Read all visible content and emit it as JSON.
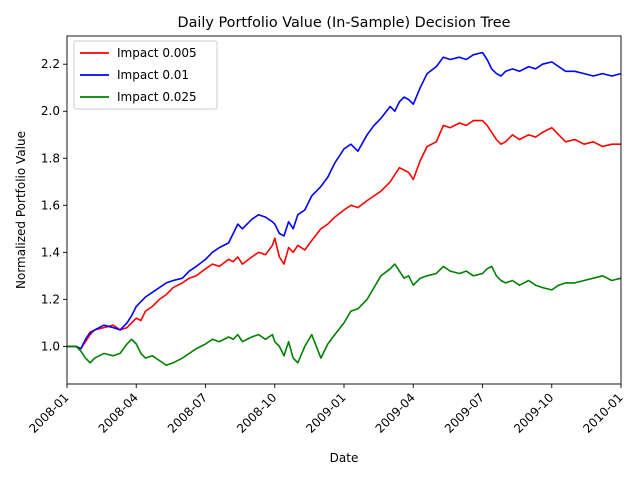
{
  "chart_data": {
    "type": "line",
    "title": "Daily Portfolio Value (In-Sample) Decision Tree",
    "xlabel": "Date",
    "ylabel": "Normalized Portfolio Value",
    "xlim": [
      0,
      24
    ],
    "ylim": [
      0.84,
      2.32
    ],
    "x_ticks": [
      {
        "v": 0,
        "label": "2008-01"
      },
      {
        "v": 3,
        "label": "2008-04"
      },
      {
        "v": 6,
        "label": "2008-07"
      },
      {
        "v": 9,
        "label": "2008-10"
      },
      {
        "v": 12,
        "label": "2009-01"
      },
      {
        "v": 15,
        "label": "2009-04"
      },
      {
        "v": 18,
        "label": "2009-07"
      },
      {
        "v": 21,
        "label": "2009-10"
      },
      {
        "v": 24,
        "label": "2010-01"
      }
    ],
    "y_ticks": [
      {
        "v": 1.0,
        "label": "1.0"
      },
      {
        "v": 1.2,
        "label": "1.2"
      },
      {
        "v": 1.4,
        "label": "1.4"
      },
      {
        "v": 1.6,
        "label": "1.6"
      },
      {
        "v": 1.8,
        "label": "1.8"
      },
      {
        "v": 2.0,
        "label": "2.0"
      },
      {
        "v": 2.2,
        "label": "2.2"
      }
    ],
    "legend_position": "upper-left",
    "series": [
      {
        "name": "Impact 0.005",
        "color": "#ff0000",
        "x": [
          0,
          0.4,
          0.6,
          0.8,
          1.0,
          1.2,
          1.6,
          2.0,
          2.3,
          2.6,
          2.8,
          3.0,
          3.2,
          3.4,
          3.7,
          4.0,
          4.3,
          4.6,
          5.0,
          5.3,
          5.6,
          6.0,
          6.3,
          6.6,
          7.0,
          7.2,
          7.4,
          7.6,
          8.0,
          8.3,
          8.6,
          8.9,
          9.0,
          9.2,
          9.4,
          9.6,
          9.8,
          10.0,
          10.3,
          10.6,
          11.0,
          11.3,
          11.6,
          12.0,
          12.3,
          12.6,
          13.0,
          13.3,
          13.6,
          14.0,
          14.2,
          14.4,
          14.6,
          14.8,
          15.0,
          15.3,
          15.6,
          16.0,
          16.3,
          16.6,
          17.0,
          17.3,
          17.6,
          18.0,
          18.2,
          18.4,
          18.6,
          18.8,
          19.0,
          19.3,
          19.6,
          20.0,
          20.3,
          20.6,
          21.0,
          21.3,
          21.6,
          22.0,
          22.4,
          22.8,
          23.2,
          23.6,
          24.0
        ],
        "values": [
          1.0,
          1.0,
          0.99,
          1.02,
          1.05,
          1.07,
          1.08,
          1.09,
          1.07,
          1.08,
          1.1,
          1.12,
          1.11,
          1.15,
          1.17,
          1.2,
          1.22,
          1.25,
          1.27,
          1.29,
          1.3,
          1.33,
          1.35,
          1.34,
          1.37,
          1.36,
          1.38,
          1.35,
          1.38,
          1.4,
          1.39,
          1.43,
          1.46,
          1.38,
          1.35,
          1.42,
          1.4,
          1.43,
          1.41,
          1.45,
          1.5,
          1.52,
          1.55,
          1.58,
          1.6,
          1.59,
          1.62,
          1.64,
          1.66,
          1.7,
          1.73,
          1.76,
          1.75,
          1.74,
          1.71,
          1.79,
          1.85,
          1.87,
          1.94,
          1.93,
          1.95,
          1.94,
          1.96,
          1.96,
          1.94,
          1.91,
          1.88,
          1.86,
          1.87,
          1.9,
          1.88,
          1.9,
          1.89,
          1.91,
          1.93,
          1.9,
          1.87,
          1.88,
          1.86,
          1.87,
          1.85,
          1.86,
          1.86
        ]
      },
      {
        "name": "Impact 0.01",
        "color": "#0000ff",
        "x": [
          0,
          0.4,
          0.6,
          0.8,
          1.0,
          1.2,
          1.6,
          2.0,
          2.3,
          2.6,
          2.8,
          3.0,
          3.2,
          3.4,
          3.7,
          4.0,
          4.3,
          4.6,
          5.0,
          5.3,
          5.6,
          6.0,
          6.3,
          6.6,
          7.0,
          7.2,
          7.4,
          7.6,
          8.0,
          8.3,
          8.6,
          8.9,
          9.0,
          9.2,
          9.4,
          9.6,
          9.8,
          10.0,
          10.3,
          10.6,
          11.0,
          11.3,
          11.6,
          12.0,
          12.3,
          12.6,
          13.0,
          13.3,
          13.6,
          14.0,
          14.2,
          14.4,
          14.6,
          14.8,
          15.0,
          15.3,
          15.6,
          16.0,
          16.3,
          16.6,
          17.0,
          17.3,
          17.6,
          18.0,
          18.2,
          18.4,
          18.6,
          18.8,
          19.0,
          19.3,
          19.6,
          20.0,
          20.3,
          20.6,
          21.0,
          21.3,
          21.6,
          22.0,
          22.4,
          22.8,
          23.2,
          23.6,
          24.0
        ],
        "values": [
          1.0,
          1.0,
          0.99,
          1.03,
          1.06,
          1.07,
          1.09,
          1.08,
          1.07,
          1.1,
          1.13,
          1.17,
          1.19,
          1.21,
          1.23,
          1.25,
          1.27,
          1.28,
          1.29,
          1.32,
          1.34,
          1.37,
          1.4,
          1.42,
          1.44,
          1.48,
          1.52,
          1.5,
          1.54,
          1.56,
          1.55,
          1.53,
          1.52,
          1.48,
          1.47,
          1.53,
          1.5,
          1.56,
          1.58,
          1.64,
          1.68,
          1.72,
          1.78,
          1.84,
          1.86,
          1.83,
          1.9,
          1.94,
          1.97,
          2.02,
          2.0,
          2.04,
          2.06,
          2.05,
          2.03,
          2.1,
          2.16,
          2.19,
          2.23,
          2.22,
          2.23,
          2.22,
          2.24,
          2.25,
          2.22,
          2.18,
          2.16,
          2.15,
          2.17,
          2.18,
          2.17,
          2.19,
          2.18,
          2.2,
          2.21,
          2.19,
          2.17,
          2.17,
          2.16,
          2.15,
          2.16,
          2.15,
          2.16
        ]
      },
      {
        "name": "Impact 0.025",
        "color": "#008000",
        "x": [
          0,
          0.4,
          0.6,
          0.8,
          1.0,
          1.2,
          1.6,
          2.0,
          2.3,
          2.6,
          2.8,
          3.0,
          3.2,
          3.4,
          3.7,
          4.0,
          4.3,
          4.6,
          5.0,
          5.3,
          5.6,
          6.0,
          6.3,
          6.6,
          7.0,
          7.2,
          7.4,
          7.6,
          8.0,
          8.3,
          8.6,
          8.9,
          9.0,
          9.2,
          9.4,
          9.6,
          9.8,
          10.0,
          10.3,
          10.6,
          11.0,
          11.3,
          11.6,
          12.0,
          12.3,
          12.6,
          13.0,
          13.3,
          13.6,
          14.0,
          14.2,
          14.4,
          14.6,
          14.8,
          15.0,
          15.3,
          15.6,
          16.0,
          16.3,
          16.6,
          17.0,
          17.3,
          17.6,
          18.0,
          18.2,
          18.4,
          18.6,
          18.8,
          19.0,
          19.3,
          19.6,
          20.0,
          20.3,
          20.6,
          21.0,
          21.3,
          21.6,
          22.0,
          22.4,
          22.8,
          23.2,
          23.6,
          24.0
        ],
        "values": [
          1.0,
          1.0,
          0.98,
          0.95,
          0.93,
          0.95,
          0.97,
          0.96,
          0.97,
          1.01,
          1.03,
          1.01,
          0.97,
          0.95,
          0.96,
          0.94,
          0.92,
          0.93,
          0.95,
          0.97,
          0.99,
          1.01,
          1.03,
          1.02,
          1.04,
          1.03,
          1.05,
          1.02,
          1.04,
          1.05,
          1.03,
          1.05,
          1.02,
          1.0,
          0.96,
          1.02,
          0.95,
          0.93,
          1.0,
          1.05,
          0.95,
          1.01,
          1.05,
          1.1,
          1.15,
          1.16,
          1.2,
          1.25,
          1.3,
          1.33,
          1.35,
          1.32,
          1.29,
          1.3,
          1.26,
          1.29,
          1.3,
          1.31,
          1.34,
          1.32,
          1.31,
          1.32,
          1.3,
          1.31,
          1.33,
          1.34,
          1.3,
          1.28,
          1.27,
          1.28,
          1.26,
          1.28,
          1.26,
          1.25,
          1.24,
          1.26,
          1.27,
          1.27,
          1.28,
          1.29,
          1.3,
          1.28,
          1.29
        ]
      }
    ]
  }
}
